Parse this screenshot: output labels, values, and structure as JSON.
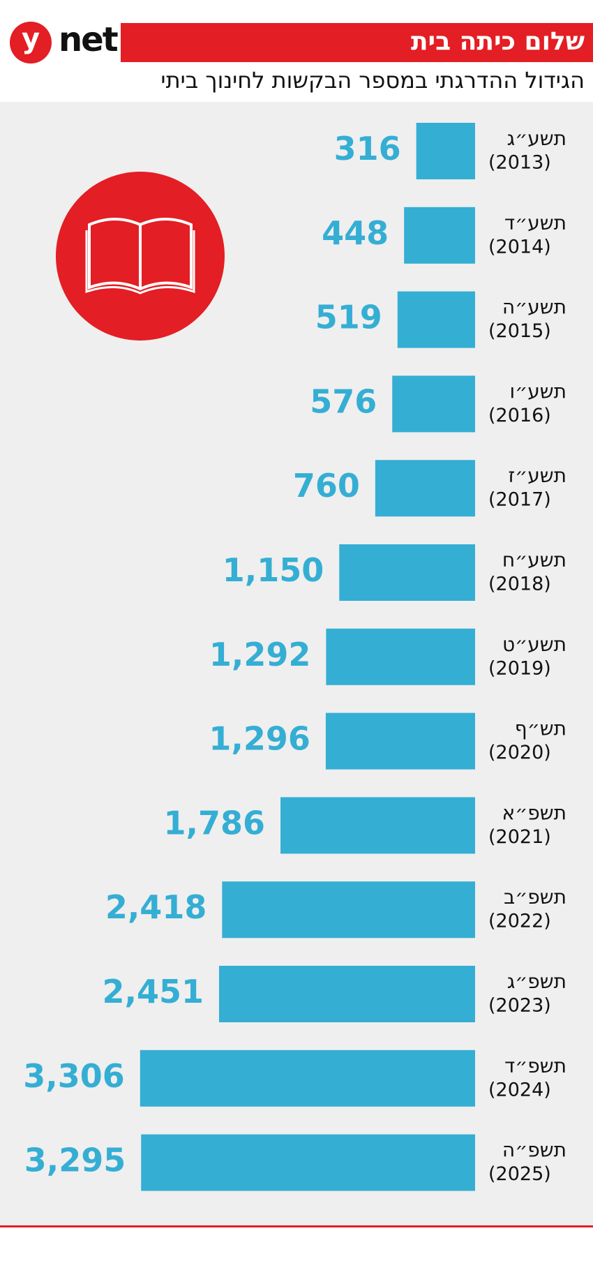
{
  "chart_data": {
    "type": "bar",
    "orientation": "horizontal",
    "logo": [
      "y",
      "net"
    ],
    "title": "שלום כיתה בית",
    "subtitle": "הגידול ההדרגתי במספר הבקשות לחינוך ביתי",
    "categories": [
      "תשע״ג",
      "תשע״ד",
      "תשע״ה",
      "תשע״ו",
      "תשע״ז",
      "תשע״ח",
      "תשע״ט",
      "תש״ף",
      "תשפ״א",
      "תשפ״ב",
      "תשפ״ג",
      "תשפ״ד",
      "תשפ״ה"
    ],
    "years": [
      "(2013)",
      "(2014)",
      "(2015)",
      "(2016)",
      "(2017)",
      "(2018)",
      "(2019)",
      "(2020)",
      "(2021)",
      "(2022)",
      "(2023)",
      "(2024)",
      "(2025)"
    ],
    "values": [
      316,
      448,
      519,
      576,
      760,
      1150,
      1292,
      1296,
      1786,
      2418,
      2451,
      3306,
      3295
    ],
    "value_labels": [
      "316",
      "448",
      "519",
      "576",
      "760",
      "1,150",
      "1,292",
      "1,296",
      "1,786",
      "2,418",
      "2,451",
      "3,306",
      "3,295"
    ],
    "color": "#35aed4",
    "accent": "#e31e24"
  }
}
